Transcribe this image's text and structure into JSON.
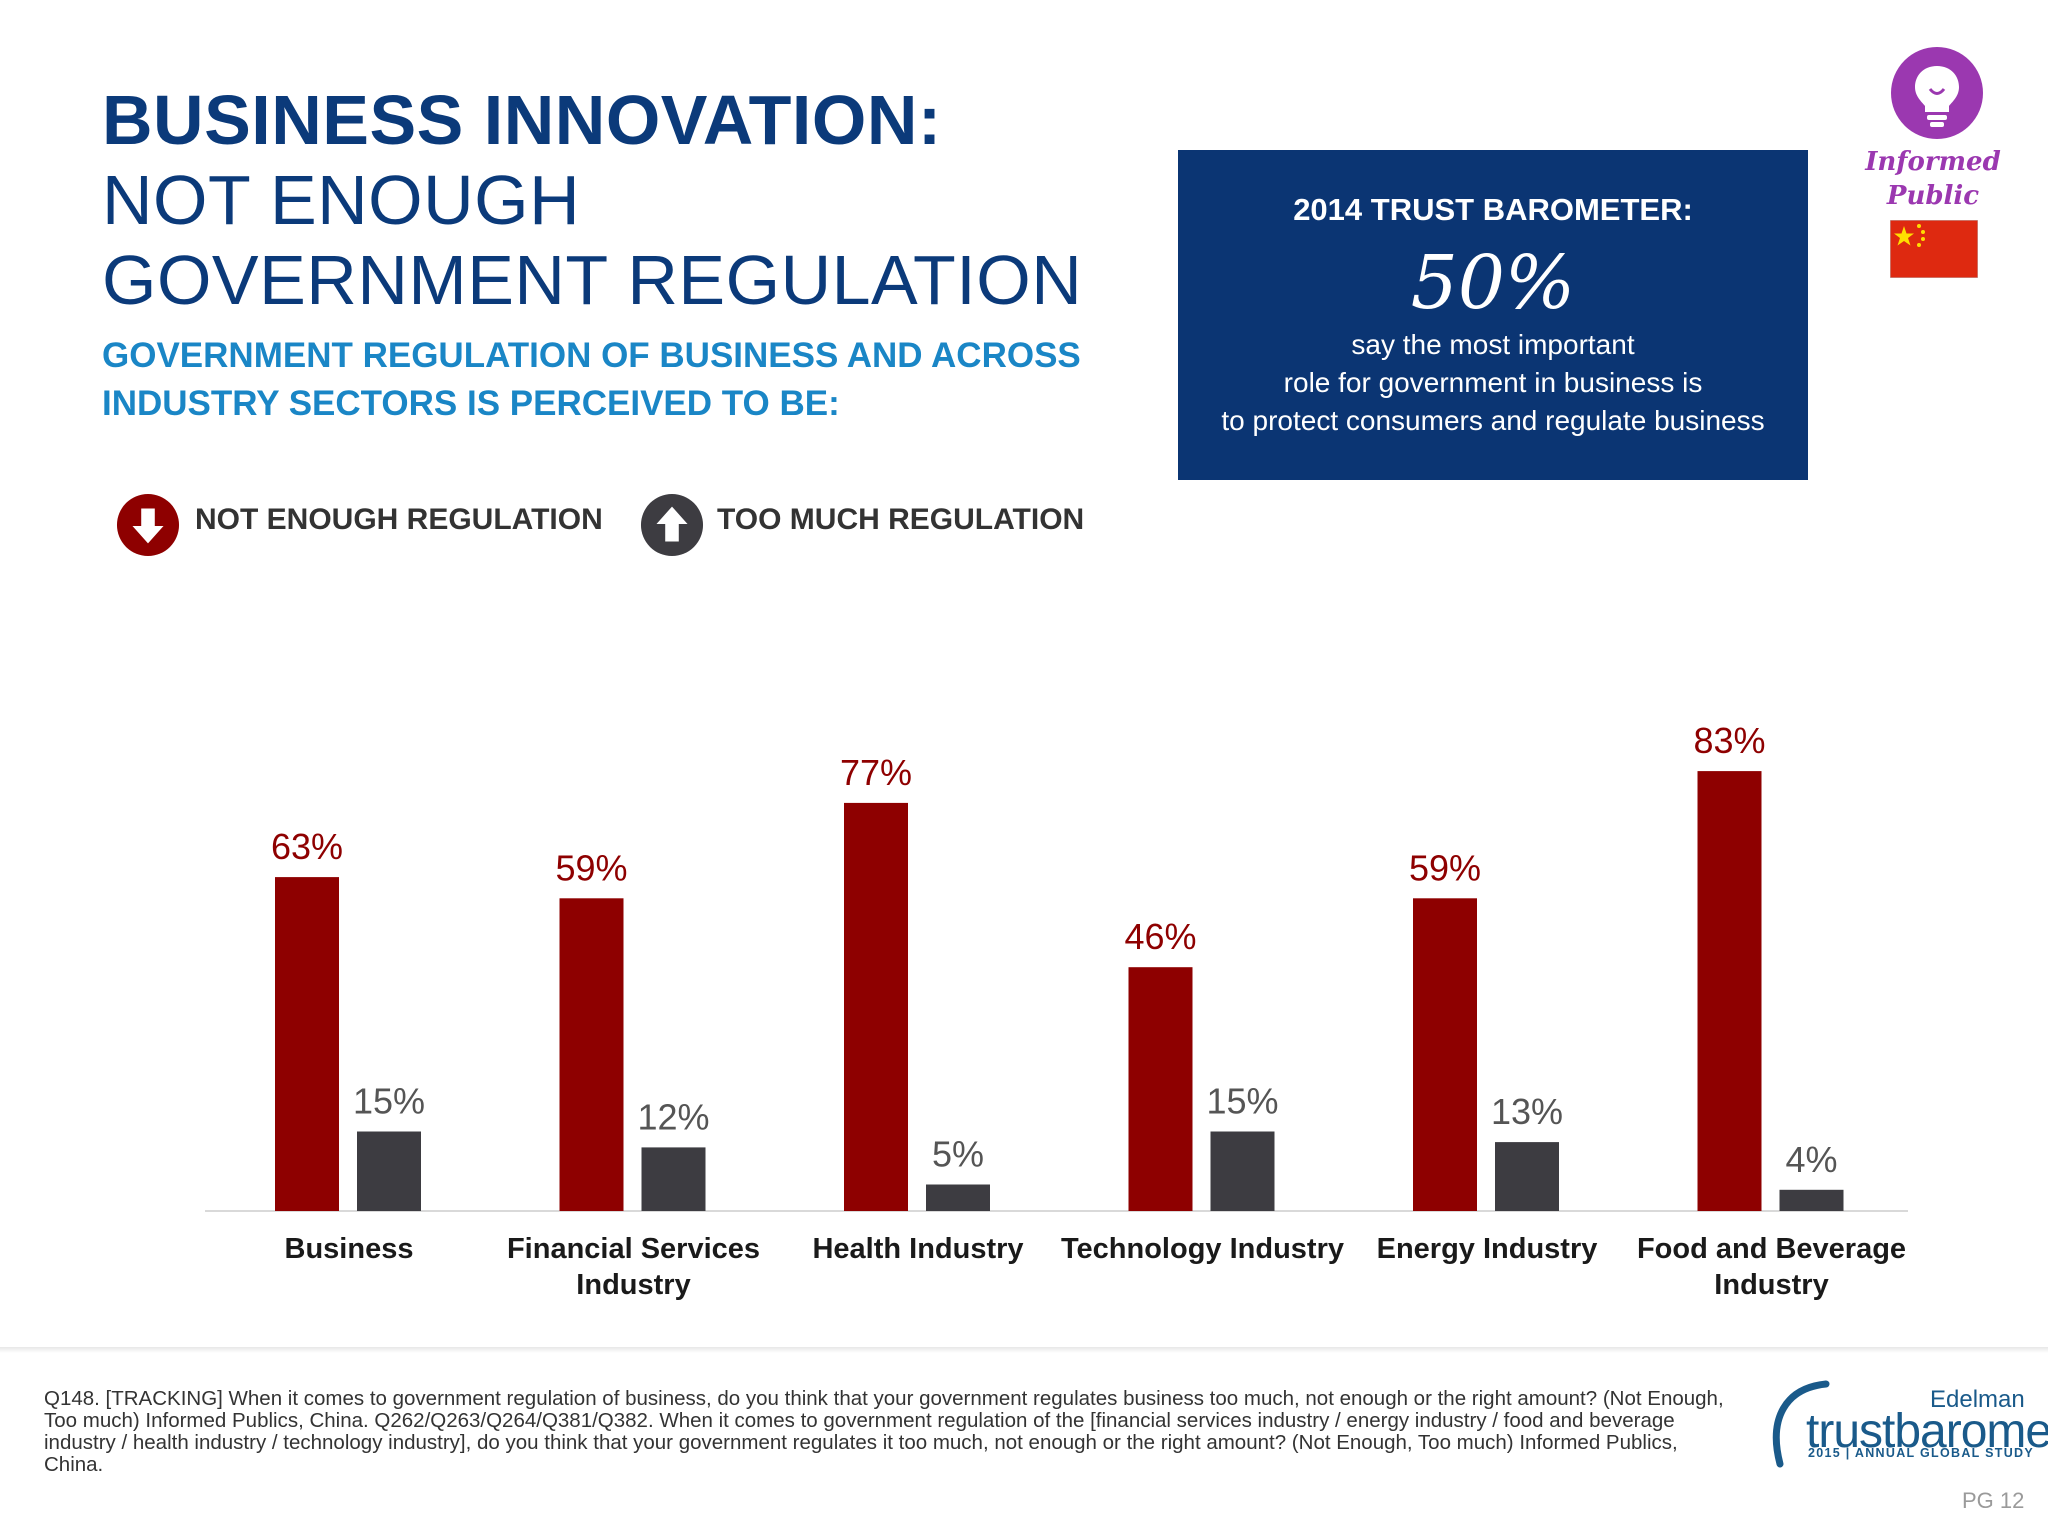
{
  "title": {
    "line1": "BUSINESS INNOVATION:",
    "line2": "NOT ENOUGH",
    "line3": "GOVERNMENT REGULATION"
  },
  "subtitle": {
    "line1": "GOVERNMENT REGULATION OF BUSINESS AND ACROSS",
    "line2": "INDUSTRY SECTORS IS PERCEIVED TO BE:"
  },
  "callout": {
    "heading": "2014 TRUST BAROMETER:",
    "value": "50%",
    "line1": "say the most important",
    "line2": "role for government in business is",
    "line3": "to protect consumers and regulate business",
    "bg_color": "#0b3573"
  },
  "badge": {
    "line1": "Informed",
    "line2": "Public",
    "icon": "lightbulb-icon",
    "flag": "china-flag-icon",
    "color": "#9b38b0"
  },
  "legend": {
    "not_enough": {
      "label": "NOT ENOUGH REGULATION",
      "icon": "arrow-down-icon",
      "color": "#8e0000"
    },
    "too_much": {
      "label": "TOO MUCH REGULATION",
      "icon": "arrow-up-icon",
      "color": "#3d3c41"
    }
  },
  "chart_data": {
    "type": "bar",
    "categories": [
      [
        "Business"
      ],
      [
        "Financial Services",
        "Industry"
      ],
      [
        "Health Industry"
      ],
      [
        "Technology Industry"
      ],
      [
        "Energy Industry"
      ],
      [
        "Food and Beverage",
        "Industry"
      ]
    ],
    "series": [
      {
        "name": "NOT ENOUGH REGULATION",
        "color": "#8e0000",
        "label_color": "#8e0000",
        "values": [
          63,
          59,
          77,
          46,
          59,
          83
        ]
      },
      {
        "name": "TOO MUCH REGULATION",
        "color": "#3d3c41",
        "label_color": "#555555",
        "values": [
          15,
          12,
          5,
          15,
          13,
          4
        ]
      }
    ],
    "value_suffix": "%",
    "ylim": [
      0,
      100
    ],
    "grid": false,
    "legend": "top-left"
  },
  "footnote": "Q148. [TRACKING] When it comes to government regulation of business, do you think that your government regulates business too much, not enough or the right amount? (Not Enough, Too much) Informed Publics, China. Q262/Q263/Q264/Q381/Q382. When it comes to government regulation of the [financial services industry / energy industry / food and beverage industry / health industry / technology industry], do you think that your government regulates it too much, not enough or the right amount? (Not Enough, Too much) Informed Publics, China.",
  "brand": {
    "company": "Edelman",
    "product": "trustbarometer",
    "tagline": "2015 | ANNUAL GLOBAL STUDY",
    "color": "#1a5a8a"
  },
  "page_number": "PG 12"
}
